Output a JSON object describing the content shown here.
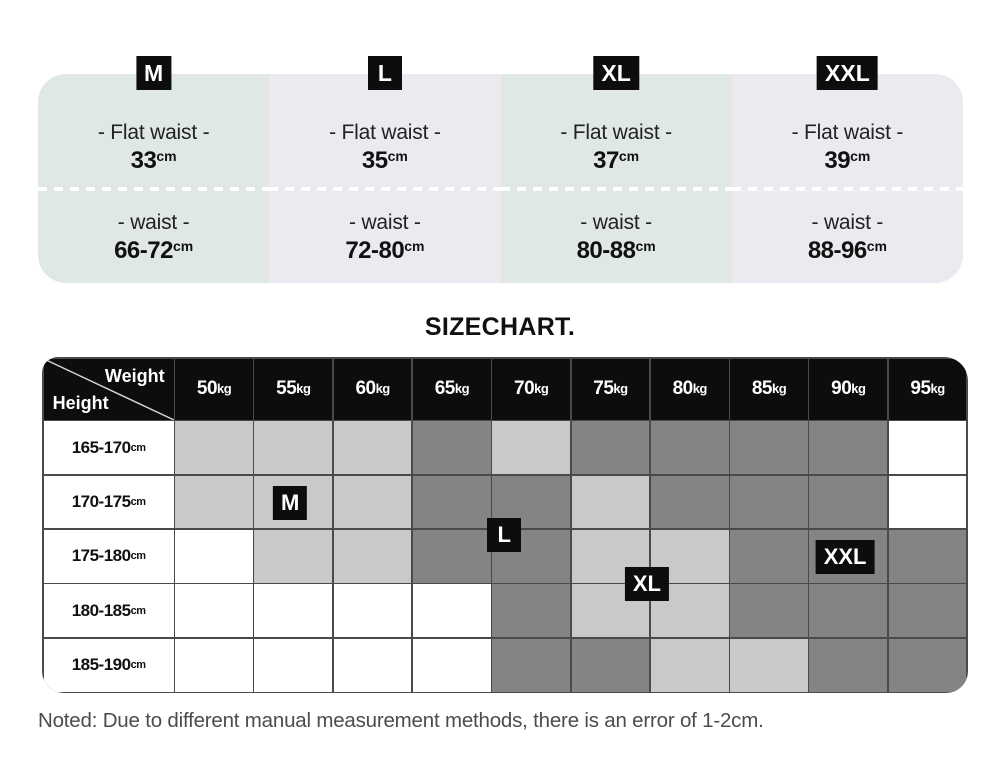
{
  "title": "SIZECHART.",
  "note": "Noted: Due to different manual measurement methods, there is an error of 1-2cm.",
  "colors": {
    "panel_teal": "#dfe8e5",
    "panel_lavender": "#eceaf0",
    "badge_black": "#0d0d0d",
    "cell_light": "#c9c9c9",
    "cell_dark": "#848484",
    "cell_white": "#ffffff",
    "grid_line": "#4a4a4a",
    "note_text": "#4c4c4c"
  },
  "size_panels": [
    {
      "size": "M",
      "flat_label": "- Flat waist -",
      "flat_value": "33",
      "waist_label": "- waist -",
      "waist_value": "66-72",
      "unit": "cm",
      "bg": "panel_teal"
    },
    {
      "size": "L",
      "flat_label": "- Flat waist -",
      "flat_value": "35",
      "waist_label": "- waist -",
      "waist_value": "72-80",
      "unit": "cm",
      "bg": "panel_lavender"
    },
    {
      "size": "XL",
      "flat_label": "- Flat waist -",
      "flat_value": "37",
      "waist_label": "- waist -",
      "waist_value": "80-88",
      "unit": "cm",
      "bg": "panel_teal"
    },
    {
      "size": "XXL",
      "flat_label": "- Flat waist -",
      "flat_value": "39",
      "waist_label": "- waist -",
      "waist_value": "88-96",
      "unit": "cm",
      "bg": "panel_lavender"
    }
  ],
  "table": {
    "corner_top": "Weight",
    "corner_bottom": "Height",
    "weight_unit": "kg",
    "height_unit": "cm",
    "weights": [
      "50",
      "55",
      "60",
      "65",
      "70",
      "75",
      "80",
      "85",
      "90",
      "95"
    ],
    "heights": [
      "165-170",
      "170-175",
      "175-180",
      "180-185",
      "185-190"
    ],
    "cells": [
      [
        "L",
        "L",
        "L",
        "D",
        "L",
        "D",
        "D",
        "D",
        "D",
        "W"
      ],
      [
        "L",
        "L",
        "L",
        "D",
        "D",
        "L",
        "D",
        "D",
        "D",
        "W"
      ],
      [
        "W",
        "L",
        "L",
        "D",
        "D",
        "L",
        "L",
        "D",
        "D",
        "D"
      ],
      [
        "W",
        "W",
        "W",
        "W",
        "D",
        "L",
        "L",
        "D",
        "D",
        "D"
      ],
      [
        "W",
        "W",
        "W",
        "W",
        "D",
        "D",
        "L",
        "L",
        "D",
        "D"
      ]
    ],
    "badges": [
      {
        "label": "M",
        "col_u": 1.45,
        "row_v": 1.5
      },
      {
        "label": "L",
        "col_u": 4.15,
        "row_v": 2.1
      },
      {
        "label": "XL",
        "col_u": 5.95,
        "row_v": 3.0
      },
      {
        "label": "XXL",
        "col_u": 8.45,
        "row_v": 2.5
      }
    ]
  },
  "chart_data": {
    "type": "heatmap",
    "title": "SIZECHART.",
    "x_label": "Weight",
    "y_label": "Height",
    "x_categories": [
      "50kg",
      "55kg",
      "60kg",
      "65kg",
      "70kg",
      "75kg",
      "80kg",
      "85kg",
      "90kg",
      "95kg"
    ],
    "y_categories": [
      "165-170cm",
      "170-175cm",
      "175-180cm",
      "180-185cm",
      "185-190cm"
    ],
    "cell_values": [
      [
        "light",
        "light",
        "light",
        "dark",
        "light",
        "dark",
        "dark",
        "dark",
        "dark",
        "none"
      ],
      [
        "light",
        "light",
        "light",
        "dark",
        "dark",
        "light",
        "dark",
        "dark",
        "dark",
        "none"
      ],
      [
        "none",
        "light",
        "light",
        "dark",
        "dark",
        "light",
        "light",
        "dark",
        "dark",
        "dark"
      ],
      [
        "none",
        "none",
        "none",
        "none",
        "dark",
        "light",
        "light",
        "dark",
        "dark",
        "dark"
      ],
      [
        "none",
        "none",
        "none",
        "none",
        "dark",
        "dark",
        "light",
        "light",
        "dark",
        "dark"
      ]
    ],
    "size_annotations": [
      {
        "size": "M",
        "anchor": "55kg / 170-175cm"
      },
      {
        "size": "L",
        "anchor": "65-70kg / 170-180cm boundary"
      },
      {
        "size": "XL",
        "anchor": "75-80kg / 175-185cm boundary"
      },
      {
        "size": "XXL",
        "anchor": "90kg / 175-180cm"
      }
    ],
    "measurements": [
      {
        "size": "M",
        "flat_waist_cm": 33,
        "waist_cm": "66-72"
      },
      {
        "size": "L",
        "flat_waist_cm": 35,
        "waist_cm": "72-80"
      },
      {
        "size": "XL",
        "flat_waist_cm": 37,
        "waist_cm": "80-88"
      },
      {
        "size": "XXL",
        "flat_waist_cm": 39,
        "waist_cm": "88-96"
      }
    ],
    "legend_position": "none",
    "grid": true
  }
}
